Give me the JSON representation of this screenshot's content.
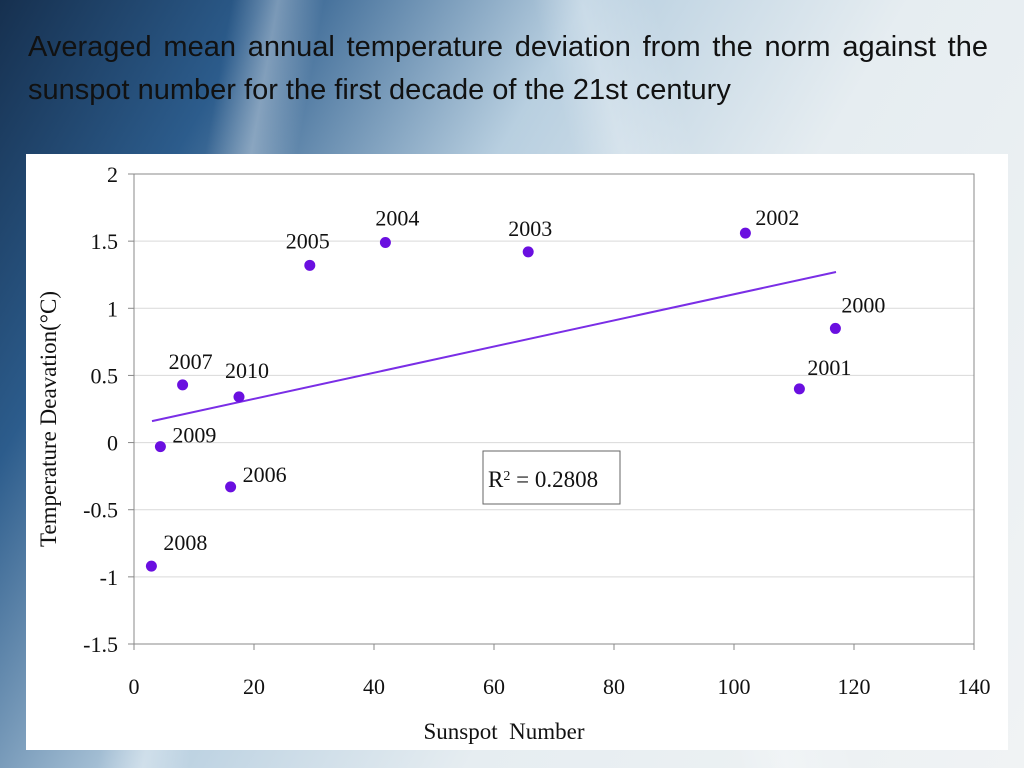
{
  "slide": {
    "title": "Averaged mean annual temperature deviation from the norm against the sunspot number for the first decade of the 21st century"
  },
  "chart_data": {
    "type": "scatter",
    "xlabel": "Sunspot  Number",
    "ylabel": "Temperature Deavation(°C)",
    "xlim": [
      0,
      140
    ],
    "ylim": [
      -1.5,
      2
    ],
    "x_ticks": [
      "0",
      "20",
      "40",
      "60",
      "80",
      "100",
      "120",
      "140"
    ],
    "y_ticks": [
      "-1.5",
      "-1",
      "-0.5",
      "0",
      "0.5",
      "1",
      "1.5",
      "2"
    ],
    "grid": "horizontal",
    "points": [
      {
        "label": "2000",
        "x": 116.9,
        "y": 0.85
      },
      {
        "label": "2001",
        "x": 110.9,
        "y": 0.4
      },
      {
        "label": "2002",
        "x": 101.9,
        "y": 1.56
      },
      {
        "label": "2003",
        "x": 65.7,
        "y": 1.42
      },
      {
        "label": "2004",
        "x": 41.9,
        "y": 1.49
      },
      {
        "label": "2005",
        "x": 29.3,
        "y": 1.32
      },
      {
        "label": "2006",
        "x": 16.1,
        "y": -0.33
      },
      {
        "label": "2007",
        "x": 8.1,
        "y": 0.43
      },
      {
        "label": "2008",
        "x": 2.9,
        "y": -0.92
      },
      {
        "label": "2009",
        "x": 4.4,
        "y": -0.03
      },
      {
        "label": "2010",
        "x": 17.5,
        "y": 0.34
      }
    ],
    "trendline": {
      "x": [
        3,
        117
      ],
      "y": [
        0.16,
        1.27
      ]
    },
    "annotation": {
      "r_label": "R",
      "r_exp": "2",
      "r_value": " = 0.2808"
    },
    "colors": {
      "points": "#6a0fe0",
      "trendline": "#7a2ee6",
      "grid": "#d9d9d9",
      "axis": "#888888"
    }
  }
}
